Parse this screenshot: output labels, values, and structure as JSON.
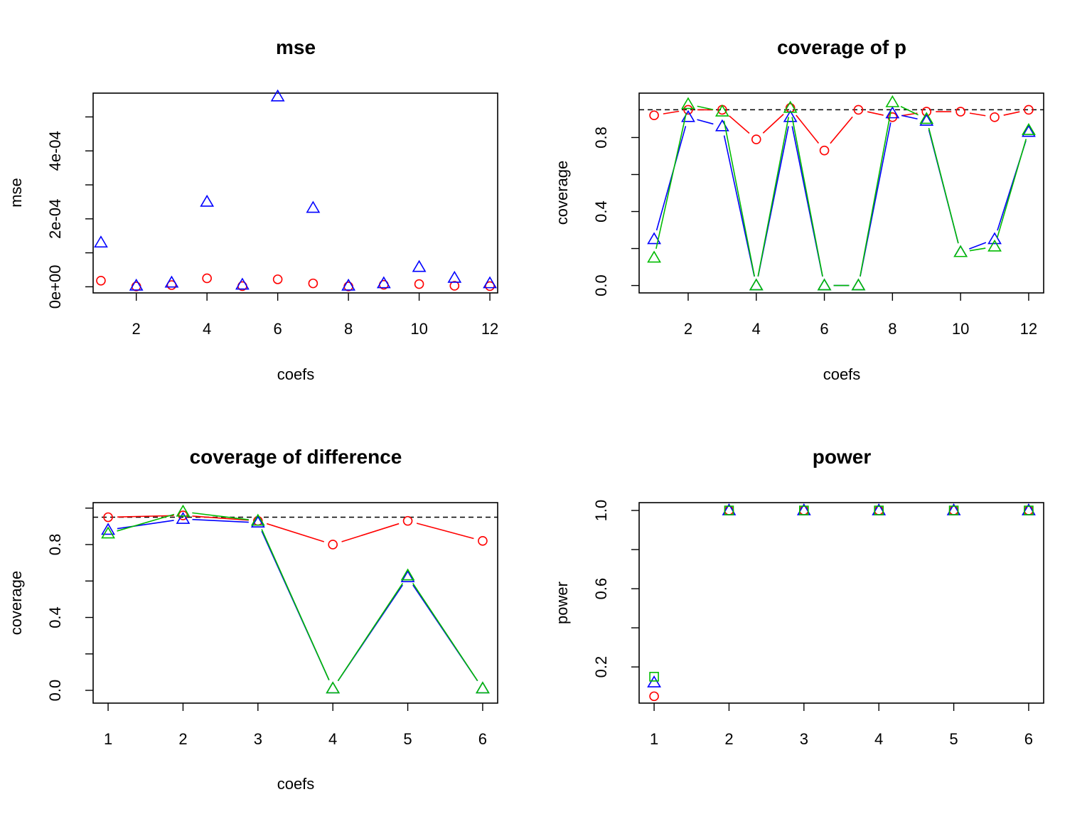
{
  "colors": {
    "red": "#ff0000",
    "blue": "#0000ff",
    "green": "#00bb00",
    "ref": "#000000"
  },
  "chart_data": [
    {
      "type": "scatter",
      "title": "mse",
      "xlabel": "coefs",
      "ylabel": "mse",
      "xlim": [
        0.78,
        12.22
      ],
      "ylim": [
        -1.8e-05,
        0.00057
      ],
      "xticks": [
        2,
        4,
        6,
        8,
        10,
        12
      ],
      "xtick_labels": [
        "2",
        "4",
        "6",
        "8",
        "10",
        "12"
      ],
      "yticks": [
        0,
        0.0001,
        0.0002,
        0.0003,
        0.0004,
        0.0005
      ],
      "ytick_labels": [
        "0e+00",
        "",
        "2e-04",
        "",
        "4e-04",
        ""
      ],
      "x": [
        1,
        2,
        3,
        4,
        5,
        6,
        7,
        8,
        9,
        10,
        11,
        12
      ],
      "series": [
        {
          "color": "red",
          "marker": "circle",
          "lines": false,
          "values": [
            1.8e-05,
            1e-06,
            5e-06,
            2.5e-05,
            2e-06,
            2.2e-05,
            1e-05,
            1e-06,
            6e-06,
            8e-06,
            3e-06,
            2e-06
          ]
        },
        {
          "color": "blue",
          "marker": "triangle",
          "lines": false,
          "values": [
            0.00013,
            3e-06,
            1.2e-05,
            0.00025,
            6e-06,
            0.00056,
            0.000232,
            3e-06,
            1e-05,
            5.8e-05,
            2.6e-05,
            1e-05
          ]
        }
      ]
    },
    {
      "type": "line",
      "title": "coverage of p",
      "xlabel": "coefs",
      "ylabel": "coverage",
      "xlim": [
        0.56,
        12.44
      ],
      "ylim": [
        -0.04,
        1.04
      ],
      "xticks": [
        2,
        4,
        6,
        8,
        10,
        12
      ],
      "xtick_labels": [
        "2",
        "4",
        "6",
        "8",
        "10",
        "12"
      ],
      "yticks": [
        0,
        0.2,
        0.4,
        0.6,
        0.8
      ],
      "ytick_labels": [
        "0.0",
        "",
        "0.4",
        "",
        "0.8"
      ],
      "ref_line": 0.95,
      "x": [
        1,
        2,
        3,
        4,
        5,
        6,
        7,
        8,
        9,
        10,
        11,
        12
      ],
      "series": [
        {
          "color": "red",
          "marker": "circle",
          "lines": true,
          "values": [
            0.92,
            0.95,
            0.95,
            0.79,
            0.96,
            0.73,
            0.95,
            0.91,
            0.94,
            0.94,
            0.91,
            0.95
          ]
        },
        {
          "color": "blue",
          "marker": "triangle",
          "lines": true,
          "values": [
            0.25,
            0.91,
            0.86,
            0.0,
            0.91,
            0.0,
            0.0,
            0.93,
            0.89,
            0.18,
            0.25,
            0.83
          ]
        },
        {
          "color": "green",
          "marker": "triangle",
          "lines": true,
          "values": [
            0.15,
            0.98,
            0.94,
            0.0,
            0.96,
            0.0,
            0.0,
            0.99,
            0.9,
            0.18,
            0.21,
            0.84
          ]
        }
      ]
    },
    {
      "type": "line",
      "title": "coverage of difference",
      "xlabel": "coefs",
      "ylabel": "coverage",
      "xlim": [
        0.8,
        6.2
      ],
      "ylim": [
        -0.07,
        1.03
      ],
      "xticks": [
        1,
        2,
        3,
        4,
        5,
        6
      ],
      "xtick_labels": [
        "1",
        "2",
        "3",
        "4",
        "5",
        "6"
      ],
      "yticks": [
        0,
        0.2,
        0.4,
        0.6,
        0.8,
        1.0
      ],
      "ytick_labels": [
        "0.0",
        "",
        "0.4",
        "",
        "0.8",
        ""
      ],
      "ref_line": 0.95,
      "x": [
        1,
        2,
        3,
        4,
        5,
        6
      ],
      "series": [
        {
          "color": "red",
          "marker": "circle",
          "lines": true,
          "values": [
            0.95,
            0.96,
            0.93,
            0.8,
            0.93,
            0.82
          ]
        },
        {
          "color": "blue",
          "marker": "triangle",
          "lines": true,
          "values": [
            0.88,
            0.94,
            0.92,
            0.01,
            0.62,
            0.01
          ]
        },
        {
          "color": "green",
          "marker": "triangle",
          "lines": true,
          "values": [
            0.86,
            0.98,
            0.93,
            0.01,
            0.63,
            0.01
          ]
        }
      ]
    },
    {
      "type": "scatter",
      "title": "power",
      "xlabel": "",
      "ylabel": "power",
      "xlim": [
        0.8,
        6.2
      ],
      "ylim": [
        0.015,
        1.04
      ],
      "xticks": [
        1,
        2,
        3,
        4,
        5,
        6
      ],
      "xtick_labels": [
        "1",
        "2",
        "3",
        "4",
        "5",
        "6"
      ],
      "yticks": [
        0.2,
        0.4,
        0.6,
        0.8,
        1.0
      ],
      "ytick_labels": [
        "0.2",
        "",
        "0.6",
        "",
        "1.0"
      ],
      "x": [
        1,
        2,
        3,
        4,
        5,
        6
      ],
      "series": [
        {
          "color": "red",
          "marker": "circle",
          "lines": false,
          "values": [
            0.05,
            1.0,
            1.0,
            1.0,
            1.0,
            1.0
          ]
        },
        {
          "color": "blue",
          "marker": "triangle",
          "lines": false,
          "values": [
            0.12,
            1.0,
            1.0,
            1.0,
            1.0,
            1.0
          ]
        },
        {
          "color": "green",
          "marker": "square",
          "lines": false,
          "values": [
            0.15,
            1.0,
            1.0,
            1.0,
            1.0,
            1.0
          ]
        }
      ]
    }
  ]
}
